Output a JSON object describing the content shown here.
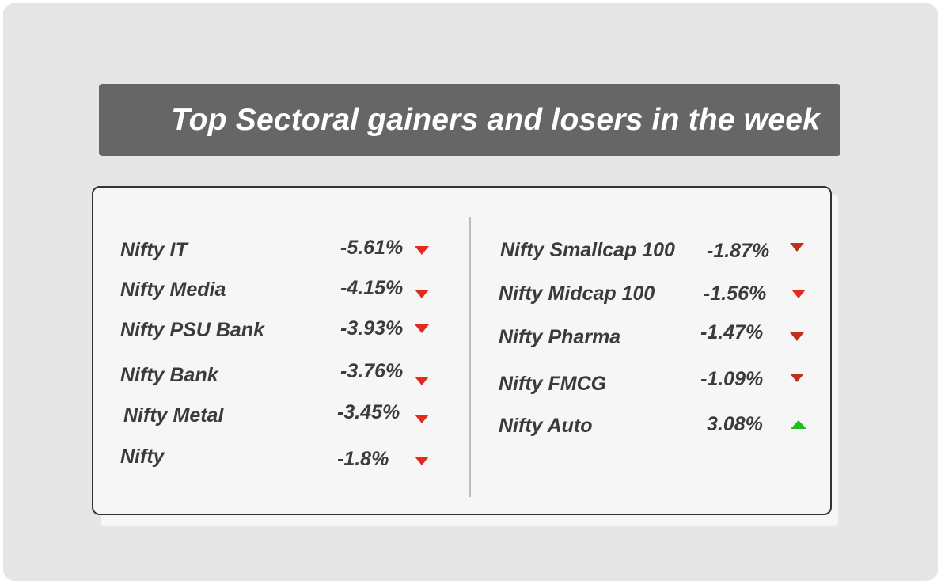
{
  "title": "Top Sectoral gainers and losers in the week",
  "colors": {
    "loss": "#e32b1d",
    "gain": "#1fbe1f",
    "title_bg": "#666666"
  },
  "left_column": [
    {
      "name": "Nifty  IT",
      "change": "-5.61%",
      "direction": "down"
    },
    {
      "name": "Nifty  Media",
      "change": "-4.15%",
      "direction": "down"
    },
    {
      "name": "Nifty PSU Bank",
      "change": "-3.93%",
      "direction": "down"
    },
    {
      "name": "Nifty Bank",
      "change": "-3.76%",
      "direction": "down"
    },
    {
      "name": "Nifty  Metal",
      "change": "-3.45%",
      "direction": "down"
    },
    {
      "name": "Nifty",
      "change": "-1.8%",
      "direction": "down"
    }
  ],
  "right_column": [
    {
      "name": "Nifty Smallcap 100",
      "change": "-1.87%",
      "direction": "down"
    },
    {
      "name": "Nifty Midcap 100",
      "change": "-1.56%",
      "direction": "down"
    },
    {
      "name": "Nifty  Pharma",
      "change": "-1.47%",
      "direction": "down"
    },
    {
      "name": "Nifty  FMCG",
      "change": "-1.09%",
      "direction": "down"
    },
    {
      "name": "Nifty Auto",
      "change": "3.08%",
      "direction": "up"
    }
  ]
}
